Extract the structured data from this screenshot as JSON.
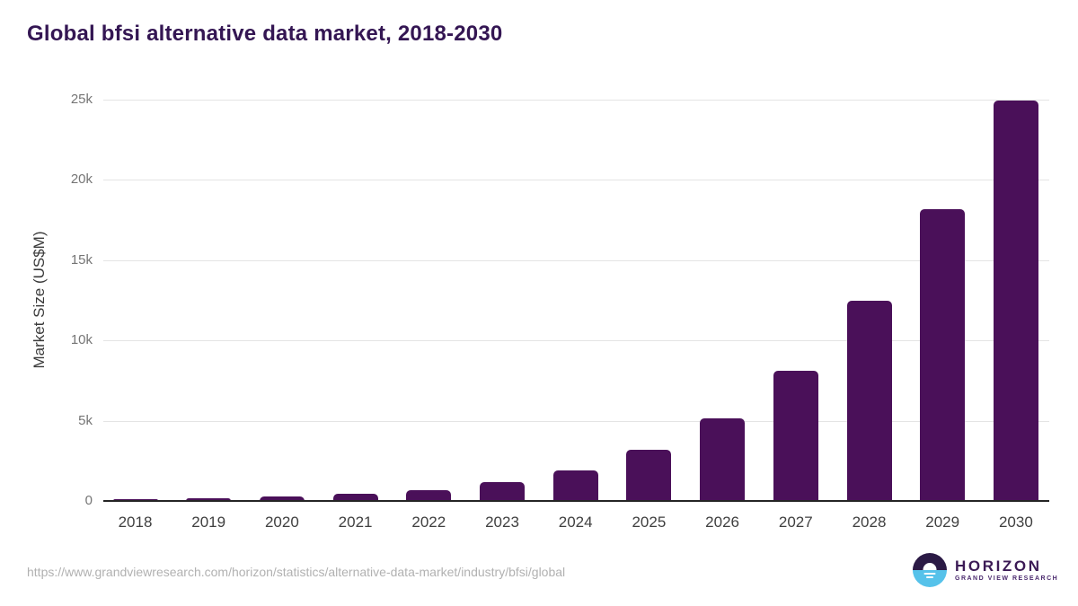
{
  "title": "Global bfsi alternative data market, 2018-2030",
  "chart_data": {
    "type": "bar",
    "title": "Global bfsi alternative data market, 2018-2030",
    "categories": [
      "2018",
      "2019",
      "2020",
      "2021",
      "2022",
      "2023",
      "2024",
      "2025",
      "2026",
      "2027",
      "2028",
      "2029",
      "2030"
    ],
    "values": [
      100,
      170,
      280,
      440,
      690,
      1160,
      1900,
      3170,
      5140,
      8110,
      12470,
      18200,
      24930
    ],
    "xlabel": "",
    "ylabel": "Market Size (US$M)",
    "ylim": [
      0,
      25000
    ],
    "yticks": [
      {
        "value": 0,
        "label": "0"
      },
      {
        "value": 5000,
        "label": "5k"
      },
      {
        "value": 10000,
        "label": "10k"
      },
      {
        "value": 15000,
        "label": "15k"
      },
      {
        "value": 20000,
        "label": "20k"
      },
      {
        "value": 25000,
        "label": "25k"
      }
    ],
    "grid": "horizontal",
    "legend": "none",
    "bar_color": "#4a1059"
  },
  "footer": {
    "source_url": "https://www.grandviewresearch.com/horizon/statistics/alternative-data-market/industry/bfsi/global",
    "logo": {
      "name": "HORIZON",
      "subtitle": "GRAND VIEW RESEARCH"
    }
  },
  "colors": {
    "bar": "#4a1059",
    "title_text": "#341653",
    "axis_tick_text": "#757575",
    "x_tick_text": "#3f3f3f",
    "gridline": "#e4e4e4",
    "baseline": "#252525",
    "footer_text": "#b1b1b1",
    "logo_purple": "#2b1a45",
    "logo_blue": "#56c2ea"
  }
}
